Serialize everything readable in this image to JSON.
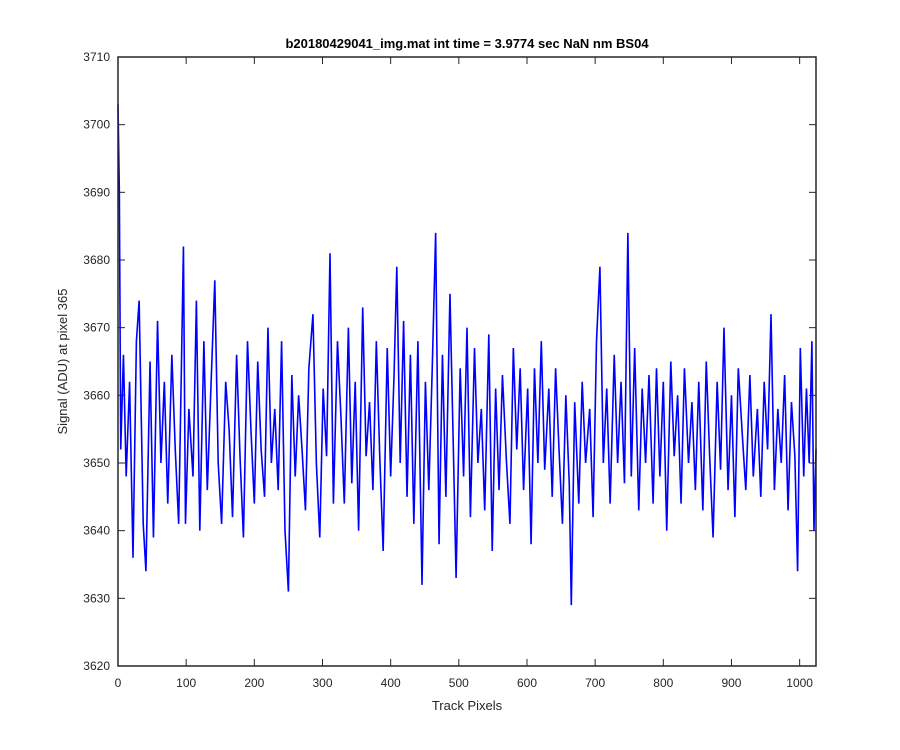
{
  "chart_data": {
    "type": "line",
    "title": "b20180429041_img.mat int time = 3.9774 sec  NaN nm BS04",
    "xlabel": "Track Pixels",
    "ylabel": "Signal (ADU) at pixel 365",
    "xlim": [
      0,
      1024
    ],
    "ylim": [
      3620,
      3710
    ],
    "xticks": [
      0,
      100,
      200,
      300,
      400,
      500,
      600,
      700,
      800,
      900,
      1000
    ],
    "yticks": [
      3620,
      3630,
      3640,
      3650,
      3660,
      3670,
      3680,
      3690,
      3700,
      3710
    ],
    "grid": false,
    "line_color": "#0000ff",
    "series": [
      {
        "points": [
          [
            0,
            3703
          ],
          [
            2,
            3690
          ],
          [
            4,
            3652
          ],
          [
            8,
            3666
          ],
          [
            12,
            3648
          ],
          [
            17,
            3662
          ],
          [
            22,
            3636
          ],
          [
            27,
            3668
          ],
          [
            31,
            3674
          ],
          [
            37,
            3641
          ],
          [
            41,
            3634
          ],
          [
            47,
            3665
          ],
          [
            52,
            3639
          ],
          [
            58,
            3671
          ],
          [
            63,
            3650
          ],
          [
            68,
            3662
          ],
          [
            73,
            3644
          ],
          [
            79,
            3666
          ],
          [
            84,
            3652
          ],
          [
            89,
            3641
          ],
          [
            93,
            3664
          ],
          [
            96,
            3682
          ],
          [
            99,
            3641
          ],
          [
            104,
            3658
          ],
          [
            110,
            3648
          ],
          [
            115,
            3674
          ],
          [
            120,
            3640
          ],
          [
            126,
            3668
          ],
          [
            131,
            3646
          ],
          [
            137,
            3663
          ],
          [
            142,
            3677
          ],
          [
            147,
            3650
          ],
          [
            152,
            3641
          ],
          [
            158,
            3662
          ],
          [
            163,
            3655
          ],
          [
            168,
            3642
          ],
          [
            174,
            3666
          ],
          [
            179,
            3651
          ],
          [
            184,
            3639
          ],
          [
            190,
            3668
          ],
          [
            195,
            3655
          ],
          [
            200,
            3644
          ],
          [
            205,
            3665
          ],
          [
            210,
            3652
          ],
          [
            215,
            3645
          ],
          [
            220,
            3670
          ],
          [
            225,
            3650
          ],
          [
            230,
            3658
          ],
          [
            235,
            3646
          ],
          [
            240,
            3668
          ],
          [
            245,
            3640
          ],
          [
            250,
            3631
          ],
          [
            255,
            3663
          ],
          [
            260,
            3648
          ],
          [
            265,
            3660
          ],
          [
            270,
            3652
          ],
          [
            275,
            3643
          ],
          [
            280,
            3664
          ],
          [
            286,
            3672
          ],
          [
            291,
            3650
          ],
          [
            296,
            3639
          ],
          [
            301,
            3661
          ],
          [
            306,
            3651
          ],
          [
            311,
            3681
          ],
          [
            316,
            3644
          ],
          [
            322,
            3668
          ],
          [
            327,
            3657
          ],
          [
            332,
            3644
          ],
          [
            338,
            3670
          ],
          [
            343,
            3647
          ],
          [
            348,
            3662
          ],
          [
            353,
            3640
          ],
          [
            359,
            3673
          ],
          [
            364,
            3651
          ],
          [
            369,
            3659
          ],
          [
            374,
            3646
          ],
          [
            379,
            3668
          ],
          [
            384,
            3651
          ],
          [
            389,
            3637
          ],
          [
            395,
            3667
          ],
          [
            400,
            3648
          ],
          [
            405,
            3663
          ],
          [
            409,
            3679
          ],
          [
            414,
            3650
          ],
          [
            419,
            3671
          ],
          [
            424,
            3645
          ],
          [
            429,
            3666
          ],
          [
            434,
            3641
          ],
          [
            440,
            3668
          ],
          [
            446,
            3632
          ],
          [
            451,
            3662
          ],
          [
            456,
            3646
          ],
          [
            461,
            3664
          ],
          [
            466,
            3684
          ],
          [
            471,
            3638
          ],
          [
            476,
            3666
          ],
          [
            481,
            3645
          ],
          [
            487,
            3675
          ],
          [
            492,
            3652
          ],
          [
            496,
            3633
          ],
          [
            502,
            3664
          ],
          [
            507,
            3648
          ],
          [
            512,
            3670
          ],
          [
            517,
            3642
          ],
          [
            523,
            3667
          ],
          [
            528,
            3650
          ],
          [
            533,
            3658
          ],
          [
            538,
            3643
          ],
          [
            544,
            3669
          ],
          [
            549,
            3637
          ],
          [
            554,
            3661
          ],
          [
            559,
            3646
          ],
          [
            564,
            3663
          ],
          [
            570,
            3650
          ],
          [
            575,
            3641
          ],
          [
            580,
            3667
          ],
          [
            585,
            3652
          ],
          [
            590,
            3664
          ],
          [
            595,
            3646
          ],
          [
            601,
            3661
          ],
          [
            606,
            3638
          ],
          [
            611,
            3664
          ],
          [
            616,
            3650
          ],
          [
            621,
            3668
          ],
          [
            626,
            3649
          ],
          [
            632,
            3661
          ],
          [
            637,
            3645
          ],
          [
            642,
            3664
          ],
          [
            647,
            3652
          ],
          [
            652,
            3641
          ],
          [
            657,
            3660
          ],
          [
            662,
            3647
          ],
          [
            665,
            3629
          ],
          [
            670,
            3659
          ],
          [
            676,
            3644
          ],
          [
            681,
            3662
          ],
          [
            686,
            3650
          ],
          [
            692,
            3658
          ],
          [
            697,
            3642
          ],
          [
            702,
            3668
          ],
          [
            707,
            3679
          ],
          [
            712,
            3650
          ],
          [
            717,
            3661
          ],
          [
            722,
            3644
          ],
          [
            728,
            3666
          ],
          [
            733,
            3650
          ],
          [
            738,
            3662
          ],
          [
            743,
            3647
          ],
          [
            748,
            3684
          ],
          [
            753,
            3648
          ],
          [
            758,
            3667
          ],
          [
            764,
            3643
          ],
          [
            769,
            3661
          ],
          [
            774,
            3650
          ],
          [
            779,
            3663
          ],
          [
            785,
            3644
          ],
          [
            790,
            3664
          ],
          [
            795,
            3648
          ],
          [
            800,
            3662
          ],
          [
            805,
            3640
          ],
          [
            811,
            3665
          ],
          [
            816,
            3651
          ],
          [
            821,
            3660
          ],
          [
            826,
            3644
          ],
          [
            831,
            3664
          ],
          [
            837,
            3650
          ],
          [
            842,
            3659
          ],
          [
            847,
            3646
          ],
          [
            852,
            3662
          ],
          [
            858,
            3643
          ],
          [
            863,
            3665
          ],
          [
            868,
            3651
          ],
          [
            873,
            3639
          ],
          [
            879,
            3662
          ],
          [
            884,
            3649
          ],
          [
            889,
            3670
          ],
          [
            895,
            3646
          ],
          [
            900,
            3660
          ],
          [
            905,
            3642
          ],
          [
            910,
            3664
          ],
          [
            916,
            3654
          ],
          [
            921,
            3646
          ],
          [
            927,
            3663
          ],
          [
            932,
            3648
          ],
          [
            938,
            3658
          ],
          [
            943,
            3645
          ],
          [
            948,
            3662
          ],
          [
            953,
            3652
          ],
          [
            958,
            3672
          ],
          [
            963,
            3646
          ],
          [
            968,
            3658
          ],
          [
            973,
            3650
          ],
          [
            978,
            3663
          ],
          [
            983,
            3643
          ],
          [
            988,
            3659
          ],
          [
            993,
            3651
          ],
          [
            997,
            3634
          ],
          [
            1001,
            3667
          ],
          [
            1006,
            3648
          ],
          [
            1010,
            3661
          ],
          [
            1014,
            3650
          ],
          [
            1018,
            3668
          ],
          [
            1021,
            3640
          ],
          [
            1024,
            3652
          ]
        ]
      }
    ]
  }
}
